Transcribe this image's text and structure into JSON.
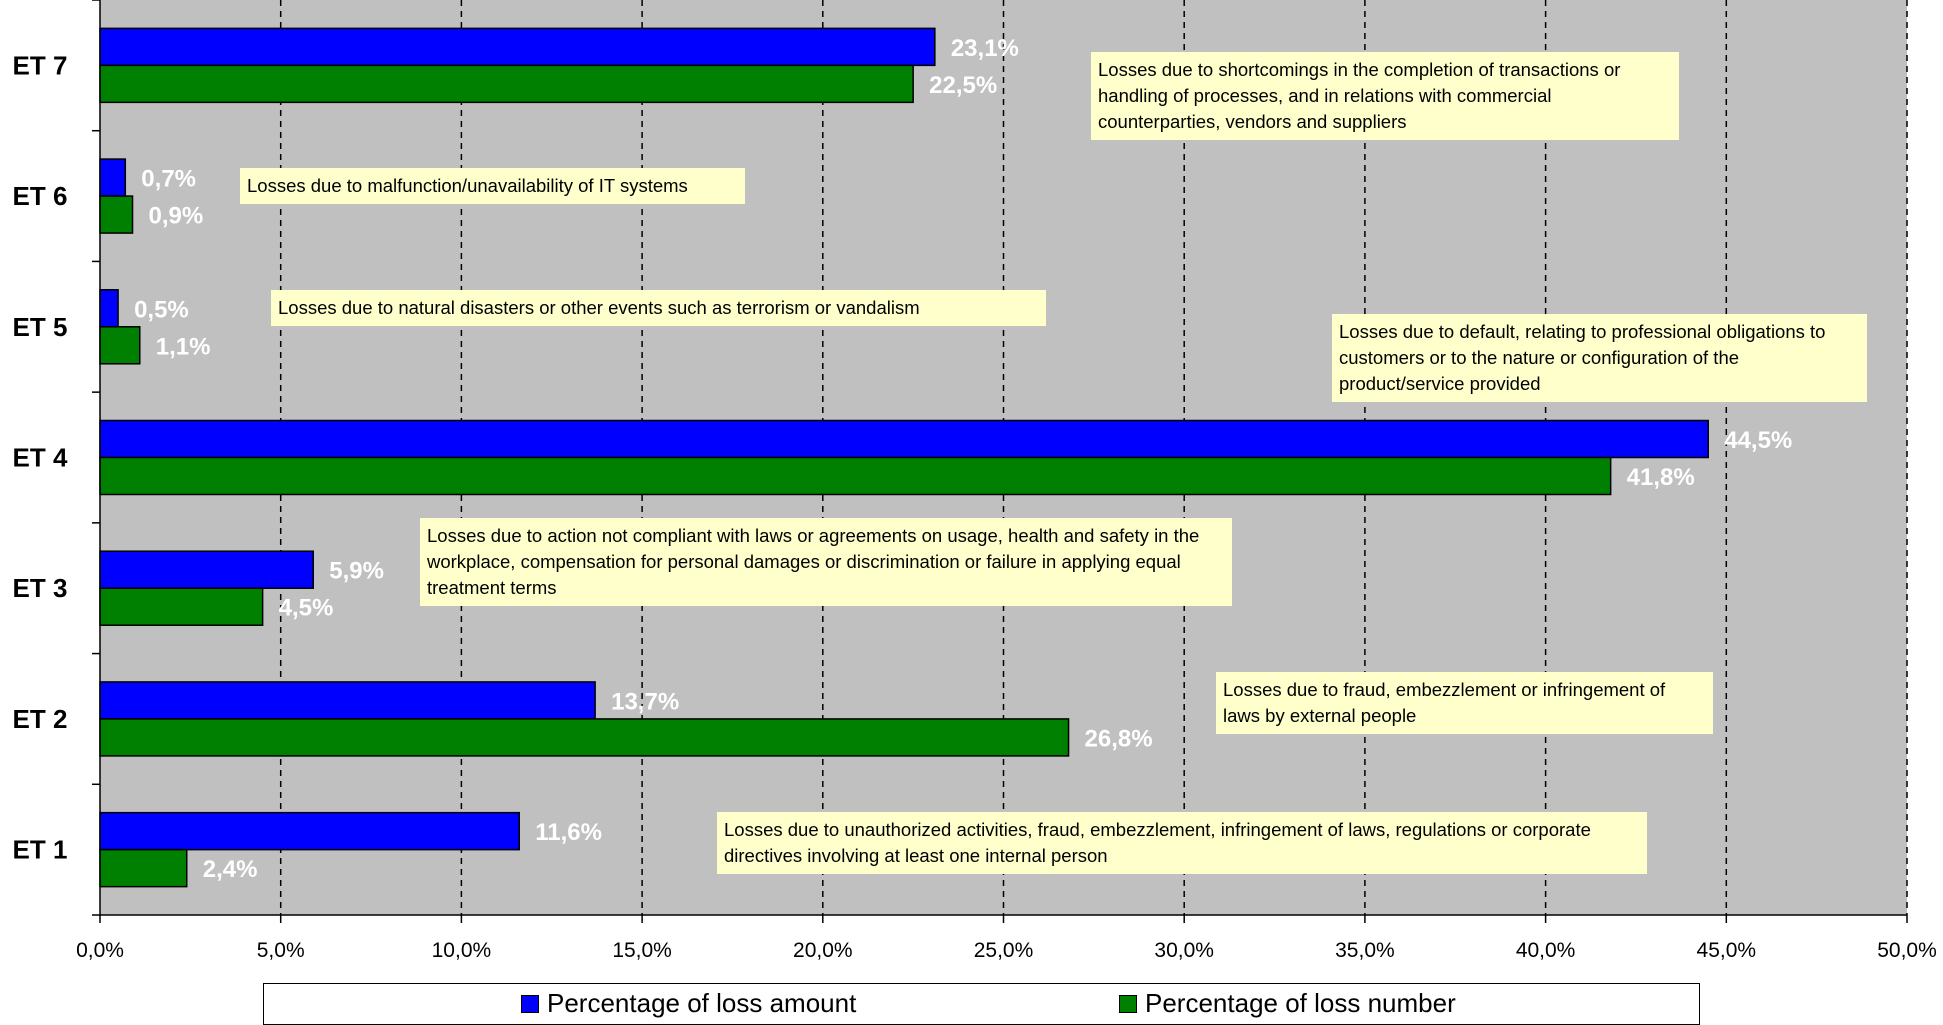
{
  "chart_data": {
    "type": "bar",
    "orientation": "horizontal",
    "categories": [
      "ET 1",
      "ET 2",
      "ET 3",
      "ET 4",
      "ET 5",
      "ET 6",
      "ET 7"
    ],
    "series": [
      {
        "name": "Percentage of loss amount",
        "color": "#0000ff",
        "values": [
          11.6,
          13.7,
          5.9,
          44.5,
          0.5,
          0.7,
          23.1
        ],
        "labels": [
          "11,6%",
          "13,7%",
          "5,9%",
          "44,5%",
          "0,5%",
          "0,7%",
          "23,1%"
        ]
      },
      {
        "name": "Percentage of loss number",
        "color": "#008000",
        "values": [
          2.4,
          26.8,
          4.5,
          41.8,
          1.1,
          0.9,
          22.5
        ],
        "labels": [
          "2,4%",
          "26,8%",
          "4,5%",
          "41,8%",
          "1,1%",
          "0,9%",
          "22,5%"
        ]
      }
    ],
    "xlim": [
      0,
      50
    ],
    "xticks": [
      "0,0%",
      "5,0%",
      "10,0%",
      "15,0%",
      "20,0%",
      "25,0%",
      "30,0%",
      "35,0%",
      "40,0%",
      "45,0%",
      "50,0%"
    ],
    "grid": "vertical dashed",
    "plot_background": "#c0c0c0",
    "annotation_color": "#ffffcc",
    "legend_position": "bottom",
    "annotations": [
      {
        "category": "ET 7",
        "text": "Losses due to shortcomings in the completion of transactions or handling of processes, and in relations with commercial counterparties, vendors and suppliers"
      },
      {
        "category": "ET 6",
        "text": "Losses due to malfunction/unavailability of IT systems"
      },
      {
        "category": "ET 5",
        "text": "Losses due to natural disasters or other events such as terrorism or vandalism"
      },
      {
        "category": "ET 4",
        "text": "Losses due to default, relating to professional obligations to customers or to the nature or configuration of the product/service provided"
      },
      {
        "category": "ET 3",
        "text": "Losses due to action not compliant with laws or agreements on usage, health and safety in the workplace, compensation for personal damages or discrimination or failure in applying equal treatment terms"
      },
      {
        "category": "ET 2",
        "text": "Losses due to fraud, embezzlement or infringement of laws by external people"
      },
      {
        "category": "ET 1",
        "text": "Losses due to unauthorized activities, fraud, embezzlement, infringement of laws, regulations or corporate directives involving at least one internal person"
      }
    ]
  }
}
